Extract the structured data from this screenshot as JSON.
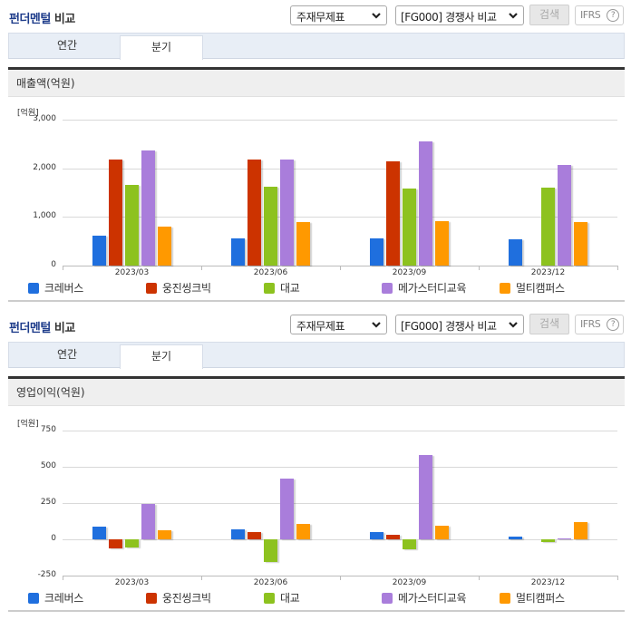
{
  "common": {
    "title_colored": "펀더멘털",
    "title_plain": " 비교",
    "statement_select": "주재무제표",
    "compare_select": "[FG000] 경쟁사 비교",
    "search_button": "검색",
    "ifrs_button": "IFRS",
    "help_icon": "?",
    "tabs": [
      {
        "label": "연간",
        "active": false
      },
      {
        "label": "분기",
        "active": true
      }
    ]
  },
  "colors": {
    "크레버스": "#1f6fde",
    "웅진씽크빅": "#cc3300",
    "대교": "#8dc21f",
    "메가스터디교육": "#a97ddb",
    "멀티캠퍼스": "#ff9900"
  },
  "legend": [
    "크레버스",
    "웅진씽크빅",
    "대교",
    "메가스터디교육",
    "멀티캠퍼스"
  ],
  "chart_data": [
    {
      "type": "bar",
      "title": "매출액(억원)",
      "unit_label": "[억원]",
      "xlabel": "",
      "ylabel": "억원",
      "categories": [
        "2023/03",
        "2023/06",
        "2023/09",
        "2023/12"
      ],
      "yticks": [
        "0",
        "1,000",
        "2,000",
        "3,000"
      ],
      "ylim": [
        0,
        3000
      ],
      "grid": true,
      "legend_position": "bottom",
      "series": [
        {
          "name": "크레버스",
          "values": [
            615,
            565,
            565,
            545
          ]
        },
        {
          "name": "웅진씽크빅",
          "values": [
            2185,
            2185,
            2135,
            null
          ]
        },
        {
          "name": "대교",
          "values": [
            1665,
            1615,
            1580,
            1600
          ]
        },
        {
          "name": "메가스터디교육",
          "values": [
            2370,
            2185,
            2555,
            2065
          ]
        },
        {
          "name": "멀티캠퍼스",
          "values": [
            795,
            890,
            915,
            890
          ]
        }
      ]
    },
    {
      "type": "bar",
      "title": "영업이익(억원)",
      "unit_label": "[억원]",
      "xlabel": "",
      "ylabel": "억원",
      "categories": [
        "2023/03",
        "2023/06",
        "2023/09",
        "2023/12"
      ],
      "yticks": [
        "-250",
        "0",
        "250",
        "500",
        "750"
      ],
      "ylim": [
        -250,
        750
      ],
      "grid": true,
      "legend_position": "bottom",
      "series": [
        {
          "name": "크레버스",
          "values": [
            90,
            71,
            52,
            21
          ]
        },
        {
          "name": "웅진씽크빅",
          "values": [
            -60,
            48,
            33,
            null
          ]
        },
        {
          "name": "대교",
          "values": [
            -54,
            -154,
            -71,
            -17
          ]
        },
        {
          "name": "메가스터디교육",
          "values": [
            242,
            421,
            583,
            8
          ]
        },
        {
          "name": "멀티캠퍼스",
          "values": [
            65,
            104,
            96,
            121
          ]
        }
      ]
    }
  ]
}
